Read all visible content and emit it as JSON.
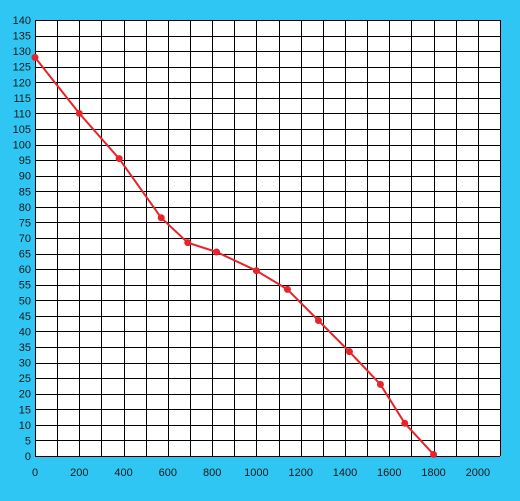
{
  "colors": {
    "background": "#30c6f4",
    "plot_area": "#ffffff",
    "grid": "#000000",
    "series": "#e8232a"
  },
  "chart_data": {
    "type": "line",
    "title": "",
    "xlabel": "",
    "ylabel": "",
    "xlim": [
      0,
      2100
    ],
    "ylim": [
      0,
      140
    ],
    "x_ticks": [
      0,
      200,
      400,
      600,
      800,
      1000,
      1200,
      1400,
      1600,
      1800,
      2000
    ],
    "y_ticks": [
      0,
      5,
      10,
      15,
      20,
      25,
      30,
      35,
      40,
      45,
      50,
      55,
      60,
      65,
      70,
      75,
      80,
      85,
      90,
      95,
      100,
      105,
      110,
      115,
      120,
      125,
      130,
      135,
      140
    ],
    "grid": true,
    "legend": "none",
    "series": [
      {
        "x": [
          0,
          200,
          380,
          570,
          690,
          820,
          1000,
          1140,
          1280,
          1420,
          1560,
          1670,
          1800
        ],
        "y": [
          128,
          110,
          95.5,
          76.5,
          68.5,
          65.5,
          59.5,
          53.5,
          43.5,
          33.5,
          23,
          10.5,
          0.5
        ]
      }
    ]
  }
}
